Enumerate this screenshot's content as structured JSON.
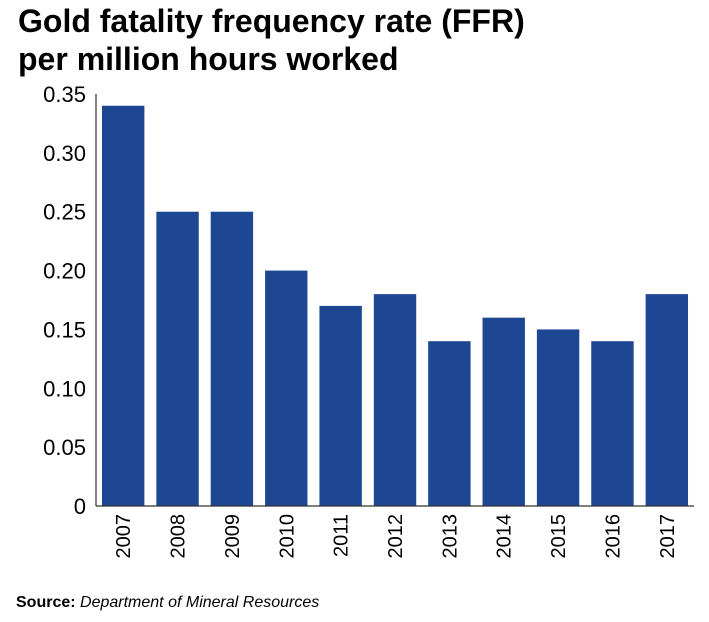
{
  "title_lines": [
    "Gold fatality frequency rate (FFR)",
    "per million hours worked"
  ],
  "source": {
    "label": "Source:",
    "text": "Department of Mineral Resources"
  },
  "colors": {
    "bar": "#1d4693",
    "axis": "#333333"
  },
  "chart_data": {
    "type": "bar",
    "title": "Gold fatality frequency rate (FFR) per million hours worked",
    "categories": [
      "2007",
      "2008",
      "2009",
      "2010",
      "2011",
      "2012",
      "2013",
      "2014",
      "2015",
      "2016",
      "2017"
    ],
    "values": [
      0.34,
      0.25,
      0.25,
      0.2,
      0.17,
      0.18,
      0.14,
      0.16,
      0.15,
      0.14,
      0.18
    ],
    "yticks": [
      "0",
      "0.05",
      "0.10",
      "0.15",
      "0.20",
      "0.25",
      "0.30",
      "0.35"
    ],
    "ylim": [
      0,
      0.35
    ],
    "xlabel": "",
    "ylabel": "",
    "grid": false,
    "legend": "none"
  }
}
